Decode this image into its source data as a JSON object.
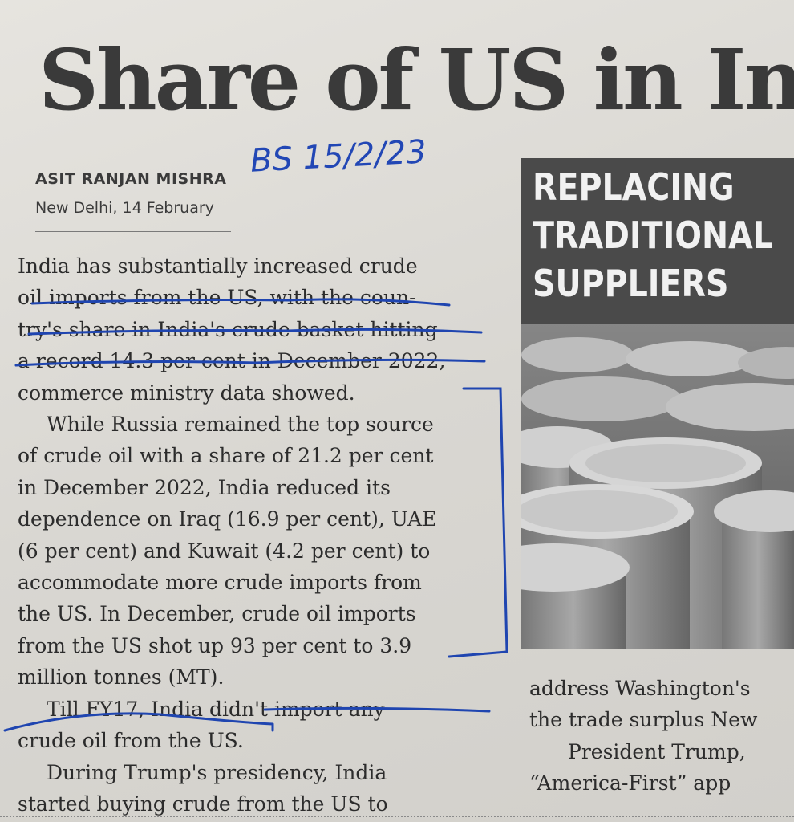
{
  "headline": "Share of US in In",
  "byline": {
    "author": "ASIT RANJAN MISHRA",
    "dateline": "New Delhi, 14 February"
  },
  "annotation": "BS 15/2/23",
  "article": {
    "lines": [
      "India has substantially increased crude",
      "oil imports from the US, with the coun-",
      "try's share in India's crude basket hitting",
      "a record 14.3 per cent in December 2022,",
      "commerce ministry data showed.",
      "While Russia remained the top source",
      "of crude oil with a share of 21.2 per cent",
      "in December 2022, India reduced its",
      "dependence on Iraq (16.9 per cent), UAE",
      "(6 per cent) and Kuwait (4.2 per cent) to",
      "accommodate more crude imports from",
      "the US. In December, crude oil imports",
      "from the US shot up 93 per cent to 3.9",
      "million tonnes (MT).",
      "Till FY17, India didn't import any",
      "crude oil from the US.",
      "During Trump's presidency, India",
      "started buying crude from the US to"
    ]
  },
  "sidebar": {
    "label_lines": [
      "REPLACING",
      "TRADITIONAL",
      "SUPPLIERS"
    ]
  },
  "right_column": {
    "lines": [
      "address Washington's",
      "the trade surplus New",
      "President Trump,",
      "“America-First” app"
    ]
  }
}
